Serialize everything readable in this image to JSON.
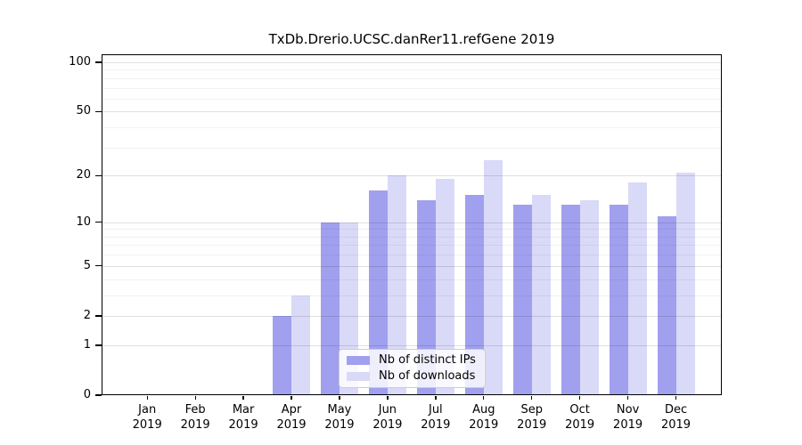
{
  "chart_data": {
    "type": "bar",
    "title": "TxDb.Drerio.UCSC.danRer11.refGene 2019",
    "categories": [
      "Jan",
      "Feb",
      "Mar",
      "Apr",
      "May",
      "Jun",
      "Jul",
      "Aug",
      "Sep",
      "Oct",
      "Nov",
      "Dec"
    ],
    "year": "2019",
    "series": [
      {
        "name": "Nb of distinct IPs",
        "color": "#a0a0ef",
        "values": [
          0,
          0,
          0,
          2,
          10,
          16,
          14,
          15,
          13,
          13,
          13,
          11
        ]
      },
      {
        "name": "Nb of downloads",
        "color": "#d9d9f8",
        "values": [
          0,
          0,
          0,
          3,
          10,
          20,
          19,
          25,
          15,
          14,
          18,
          21
        ]
      }
    ],
    "yscale": "log10(1+x)",
    "ylim": [
      0,
      100
    ],
    "y_ticks": [
      0,
      1,
      2,
      5,
      10,
      20,
      50,
      100
    ],
    "y_minor_ticks": [
      3,
      4,
      6,
      7,
      8,
      9,
      30,
      40,
      60,
      70,
      80,
      90
    ],
    "grid": true,
    "legend_position": "inside-bottom-center",
    "axis_color": "#000000"
  }
}
